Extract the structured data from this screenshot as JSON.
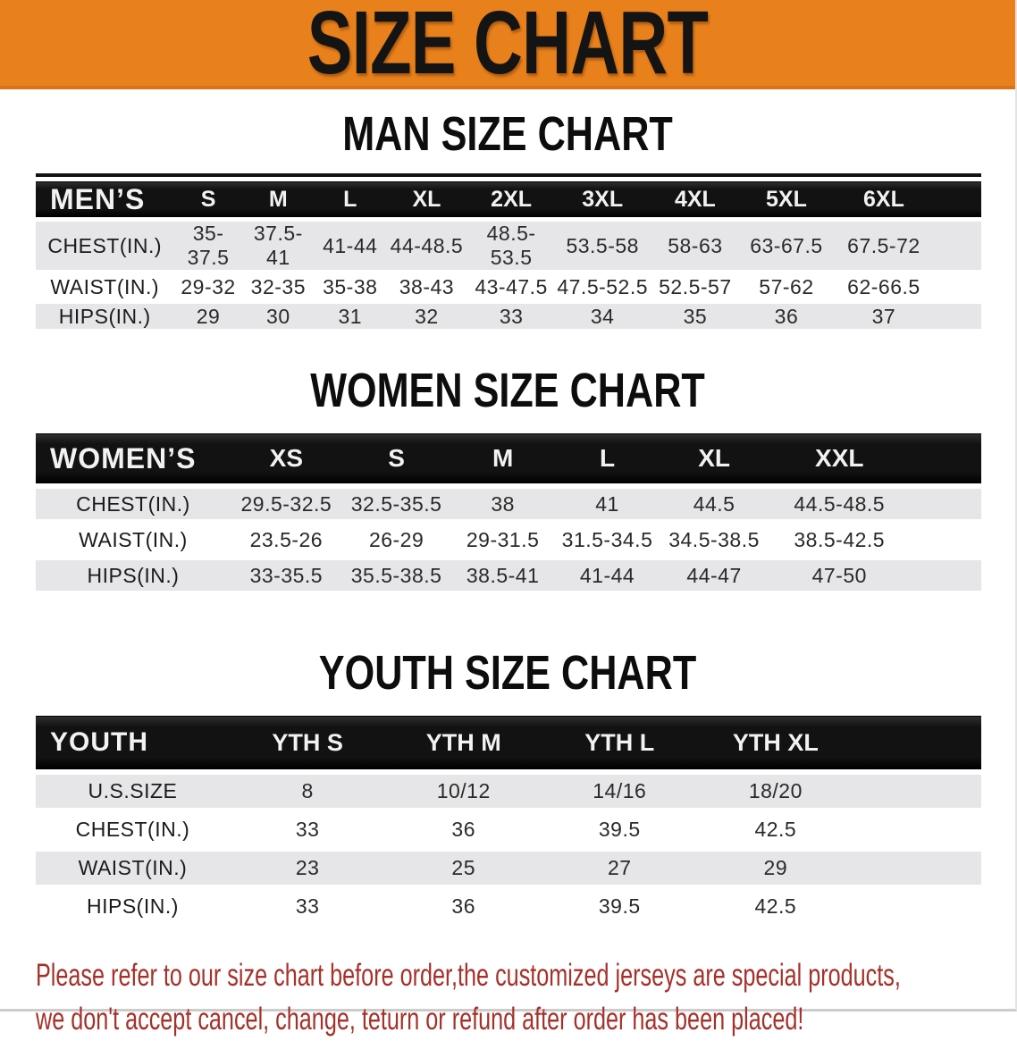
{
  "banner": {
    "title": "SIZE CHART"
  },
  "men": {
    "title": "MAN SIZE CHART",
    "table": {
      "corner": "MEN’S",
      "sizes": [
        "S",
        "M",
        "L",
        "XL",
        "2XL",
        "3XL",
        "4XL",
        "5XL",
        "6XL"
      ],
      "rows": [
        {
          "label": "CHEST(IN.)",
          "values": [
            "35-37.5",
            "37.5-41",
            "41-44",
            "44-48.5",
            "48.5-53.5",
            "53.5-58",
            "58-63",
            "63-67.5",
            "67.5-72"
          ]
        },
        {
          "label": "WAIST(IN.)",
          "values": [
            "29-32",
            "32-35",
            "35-38",
            "38-43",
            "43-47.5",
            "47.5-52.5",
            "52.5-57",
            "57-62",
            "62-66.5"
          ]
        },
        {
          "label": "HIPS(IN.)",
          "values": [
            "29",
            "30",
            "31",
            "32",
            "33",
            "34",
            "35",
            "36",
            "37"
          ]
        }
      ]
    }
  },
  "women": {
    "title": "WOMEN SIZE CHART",
    "table": {
      "corner": "WOMEN’S",
      "sizes": [
        "XS",
        "S",
        "M",
        "L",
        "XL",
        "XXL"
      ],
      "rows": [
        {
          "label": "CHEST(IN.)",
          "values": [
            "29.5-32.5",
            "32.5-35.5",
            "38",
            "41",
            "44.5",
            "44.5-48.5"
          ]
        },
        {
          "label": "WAIST(IN.)",
          "values": [
            "23.5-26",
            "26-29",
            "29-31.5",
            "31.5-34.5",
            "34.5-38.5",
            "38.5-42.5"
          ]
        },
        {
          "label": "HIPS(IN.)",
          "values": [
            "33-35.5",
            "35.5-38.5",
            "38.5-41",
            "41-44",
            "44-47",
            "47-50"
          ]
        }
      ]
    }
  },
  "youth": {
    "title": "YOUTH SIZE CHART",
    "table": {
      "corner": "YOUTH",
      "sizes": [
        "YTH S",
        "YTH M",
        "YTH L",
        "YTH XL"
      ],
      "rows": [
        {
          "label": "U.S.SIZE",
          "values": [
            "8",
            "10/12",
            "14/16",
            "18/20"
          ]
        },
        {
          "label": "CHEST(IN.)",
          "values": [
            "33",
            "36",
            "39.5",
            "42.5"
          ]
        },
        {
          "label": "WAIST(IN.)",
          "values": [
            "23",
            "25",
            "27",
            "29"
          ]
        },
        {
          "label": "HIPS(IN.)",
          "values": [
            "33",
            "36",
            "39.5",
            "42.5"
          ]
        }
      ]
    }
  },
  "footer": {
    "line1": "Please refer to our size chart before order,the customized jerseys are special products,",
    "line2": "we don't accept cancel, change, teturn or refund after order has been placed!"
  },
  "colors": {
    "banner_bg": "#E8801B",
    "banner_edge": "#D8731A",
    "stripe": "#E6E6E8",
    "footer_red": "#A5312A"
  }
}
